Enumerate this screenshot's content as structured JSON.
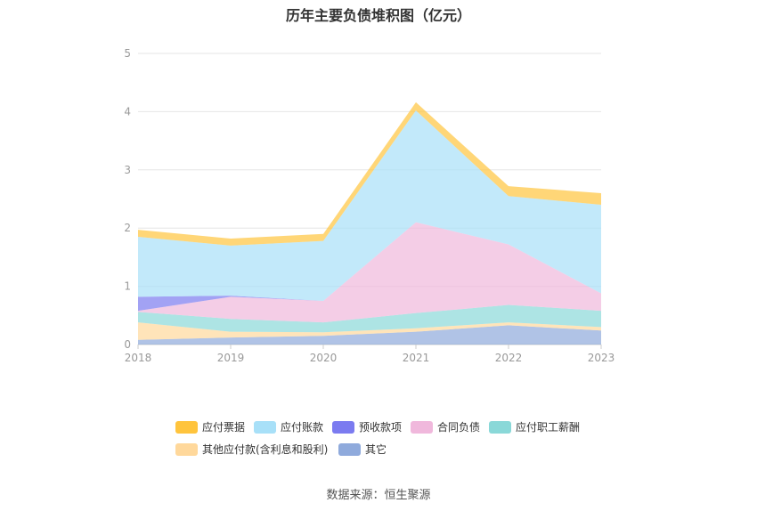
{
  "chart_data": {
    "type": "area",
    "title": "历年主要负债堆积图（亿元）",
    "source": "数据来源：恒生聚源",
    "categories": [
      "2018",
      "2019",
      "2020",
      "2021",
      "2022",
      "2023"
    ],
    "ylim": [
      0,
      5
    ],
    "y_ticks": [
      "0",
      "1",
      "2",
      "3",
      "4",
      "5"
    ],
    "grid": true,
    "stacked": true,
    "legend_position": "bottom",
    "series": [
      {
        "name": "其它",
        "color": "#8faadc",
        "values": [
          0.08,
          0.12,
          0.15,
          0.22,
          0.33,
          0.24
        ]
      },
      {
        "name": "其他应付款(含利息和股利)",
        "color": "#ffd89b",
        "values": [
          0.3,
          0.1,
          0.06,
          0.06,
          0.05,
          0.06
        ]
      },
      {
        "name": "应付职工薪酬",
        "color": "#8ad8d8",
        "values": [
          0.18,
          0.22,
          0.17,
          0.26,
          0.3,
          0.28
        ]
      },
      {
        "name": "合同负债",
        "color": "#f0b8dc",
        "values": [
          0.02,
          0.38,
          0.37,
          1.56,
          1.04,
          0.3
        ]
      },
      {
        "name": "预收款项",
        "color": "#7b7bf0",
        "values": [
          0.24,
          0.02,
          0.0,
          0.0,
          0.0,
          0.0
        ]
      },
      {
        "name": "应付账款",
        "color": "#a8e0f8",
        "values": [
          1.03,
          0.86,
          1.03,
          1.92,
          0.83,
          1.52
        ]
      },
      {
        "name": "应付票据",
        "color": "#ffc43d",
        "values": [
          0.12,
          0.12,
          0.12,
          0.14,
          0.17,
          0.2
        ]
      }
    ],
    "legend_order": [
      "应付票据",
      "应付账款",
      "预收款项",
      "合同负债",
      "应付职工薪酬",
      "其他应付款(含利息和股利)",
      "其它"
    ]
  }
}
